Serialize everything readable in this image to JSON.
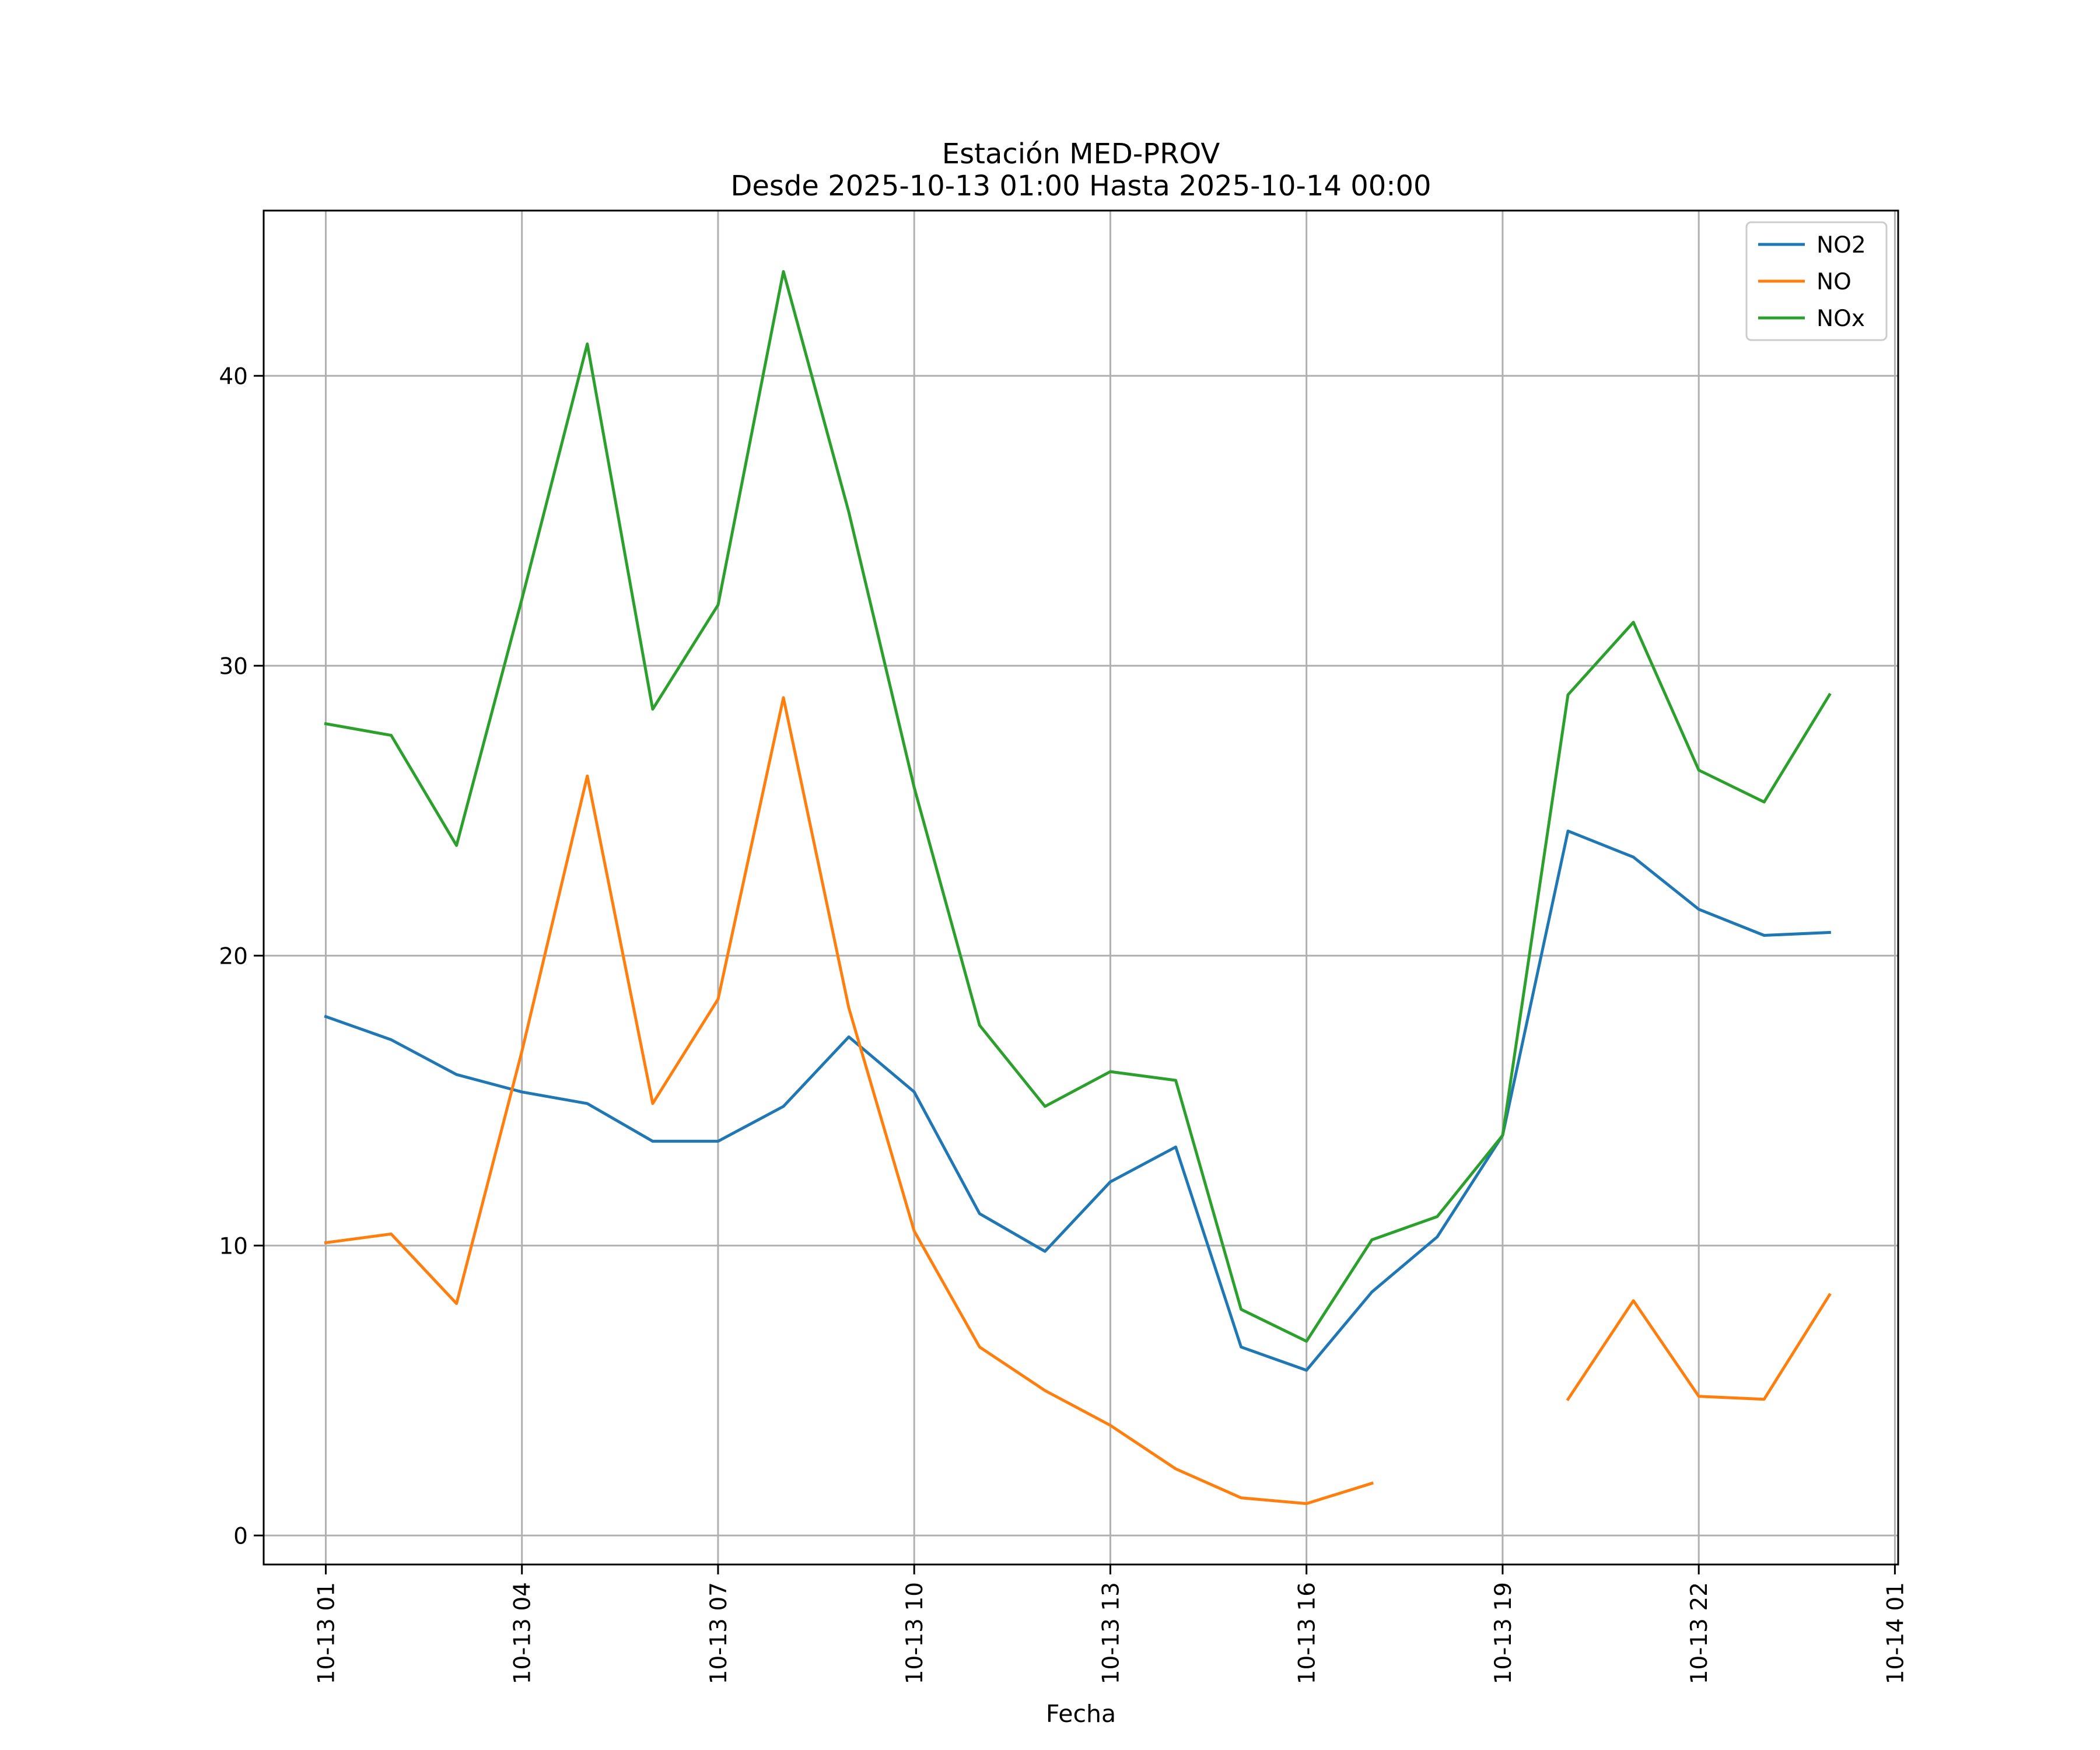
{
  "chart_data": {
    "type": "line",
    "title_line1": "Estación MED-PROV",
    "title_line2": "Desde 2025-10-13 01:00 Hasta 2025-10-14 00:00",
    "xlabel": "Fecha",
    "ylabel": "",
    "x_hours": [
      1,
      2,
      3,
      4,
      5,
      6,
      7,
      8,
      9,
      10,
      11,
      12,
      13,
      14,
      15,
      16,
      17,
      18,
      19,
      20,
      21,
      22,
      23,
      24
    ],
    "xlim": [
      0.05,
      25.05
    ],
    "ylim": [
      -1,
      45.7
    ],
    "x_ticks": [
      {
        "hour": 1,
        "label": "10-13 01"
      },
      {
        "hour": 4,
        "label": "10-13 04"
      },
      {
        "hour": 7,
        "label": "10-13 07"
      },
      {
        "hour": 10,
        "label": "10-13 10"
      },
      {
        "hour": 13,
        "label": "10-13 13"
      },
      {
        "hour": 16,
        "label": "10-13 16"
      },
      {
        "hour": 19,
        "label": "10-13 19"
      },
      {
        "hour": 22,
        "label": "10-13 22"
      },
      {
        "hour": 25,
        "label": "10-14 01"
      }
    ],
    "y_ticks": [
      {
        "value": 0,
        "label": "0"
      },
      {
        "value": 10,
        "label": "10"
      },
      {
        "value": 20,
        "label": "20"
      },
      {
        "value": 30,
        "label": "30"
      },
      {
        "value": 40,
        "label": "40"
      }
    ],
    "grid": true,
    "legend_position": "top-right",
    "series": [
      {
        "name": "NO2",
        "color": "#1f77b4",
        "values": [
          17.9,
          17.1,
          15.9,
          15.3,
          14.9,
          13.6,
          13.6,
          14.8,
          17.2,
          15.3,
          11.1,
          9.8,
          12.2,
          13.4,
          6.5,
          5.7,
          8.4,
          10.3,
          13.8,
          24.3,
          23.4,
          21.6,
          20.7,
          20.8
        ]
      },
      {
        "name": "NO",
        "color": "#ff7f0e",
        "values": [
          10.1,
          10.4,
          8.0,
          16.7,
          26.2,
          14.9,
          18.5,
          28.9,
          18.2,
          10.5,
          6.5,
          5.0,
          3.8,
          2.3,
          1.3,
          1.1,
          1.8,
          null,
          null,
          4.7,
          8.1,
          4.8,
          4.7,
          8.3
        ]
      },
      {
        "name": "NOx",
        "color": "#2ca02c",
        "values": [
          28.0,
          27.6,
          23.8,
          32.3,
          41.1,
          28.5,
          32.1,
          43.6,
          35.3,
          25.8,
          17.6,
          14.8,
          16.0,
          15.7,
          7.8,
          6.7,
          10.2,
          11.0,
          13.8,
          29.0,
          31.5,
          26.4,
          25.3,
          29.0
        ]
      }
    ]
  }
}
